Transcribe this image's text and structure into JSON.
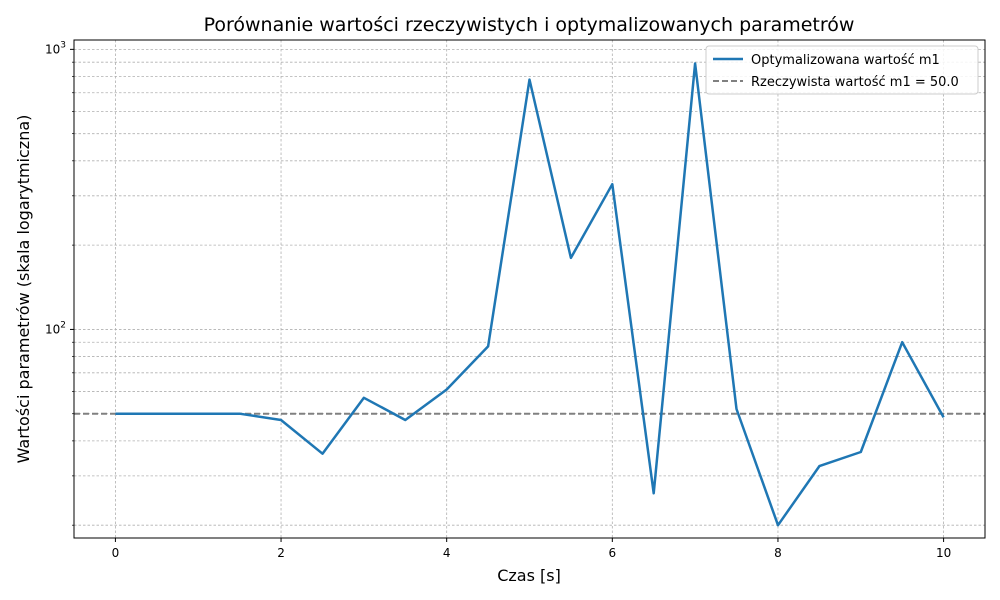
{
  "chart_data": {
    "type": "line",
    "title": "Porównanie wartości rzeczywistych i optymalizowanych parametrów",
    "xlabel": "Czas [s]",
    "ylabel": "Wartości parametrów (skala logarytmiczna)",
    "xlim": [
      -0.5,
      10.5
    ],
    "ylim": [
      18,
      1080
    ],
    "yscale": "log",
    "grid": true,
    "legend_position": "top-right",
    "x_ticks": [
      "0",
      "2",
      "4",
      "6",
      "8",
      "10"
    ],
    "y_ticks": [
      {
        "base": "10",
        "exp": "2"
      },
      {
        "base": "10",
        "exp": "3"
      }
    ],
    "series": [
      {
        "name": "Optymalizowana wartość m1",
        "color": "#1f77b4",
        "style": "solid",
        "x": [
          0,
          0.5,
          1,
          1.5,
          2,
          2.5,
          3,
          3.5,
          4,
          4.5,
          5,
          5.5,
          6,
          6.5,
          7,
          7.5,
          8,
          8.5,
          9,
          9.5,
          10
        ],
        "values": [
          50,
          50,
          50,
          50,
          47.5,
          36,
          57,
          47.5,
          61,
          87,
          780,
          180,
          330,
          26,
          890,
          52,
          20,
          32.5,
          36.5,
          90,
          48.5
        ]
      },
      {
        "name": "Rzeczywista wartość m1 = 50.0",
        "color": "#808080",
        "style": "dashed",
        "constant": 50.0
      }
    ]
  }
}
